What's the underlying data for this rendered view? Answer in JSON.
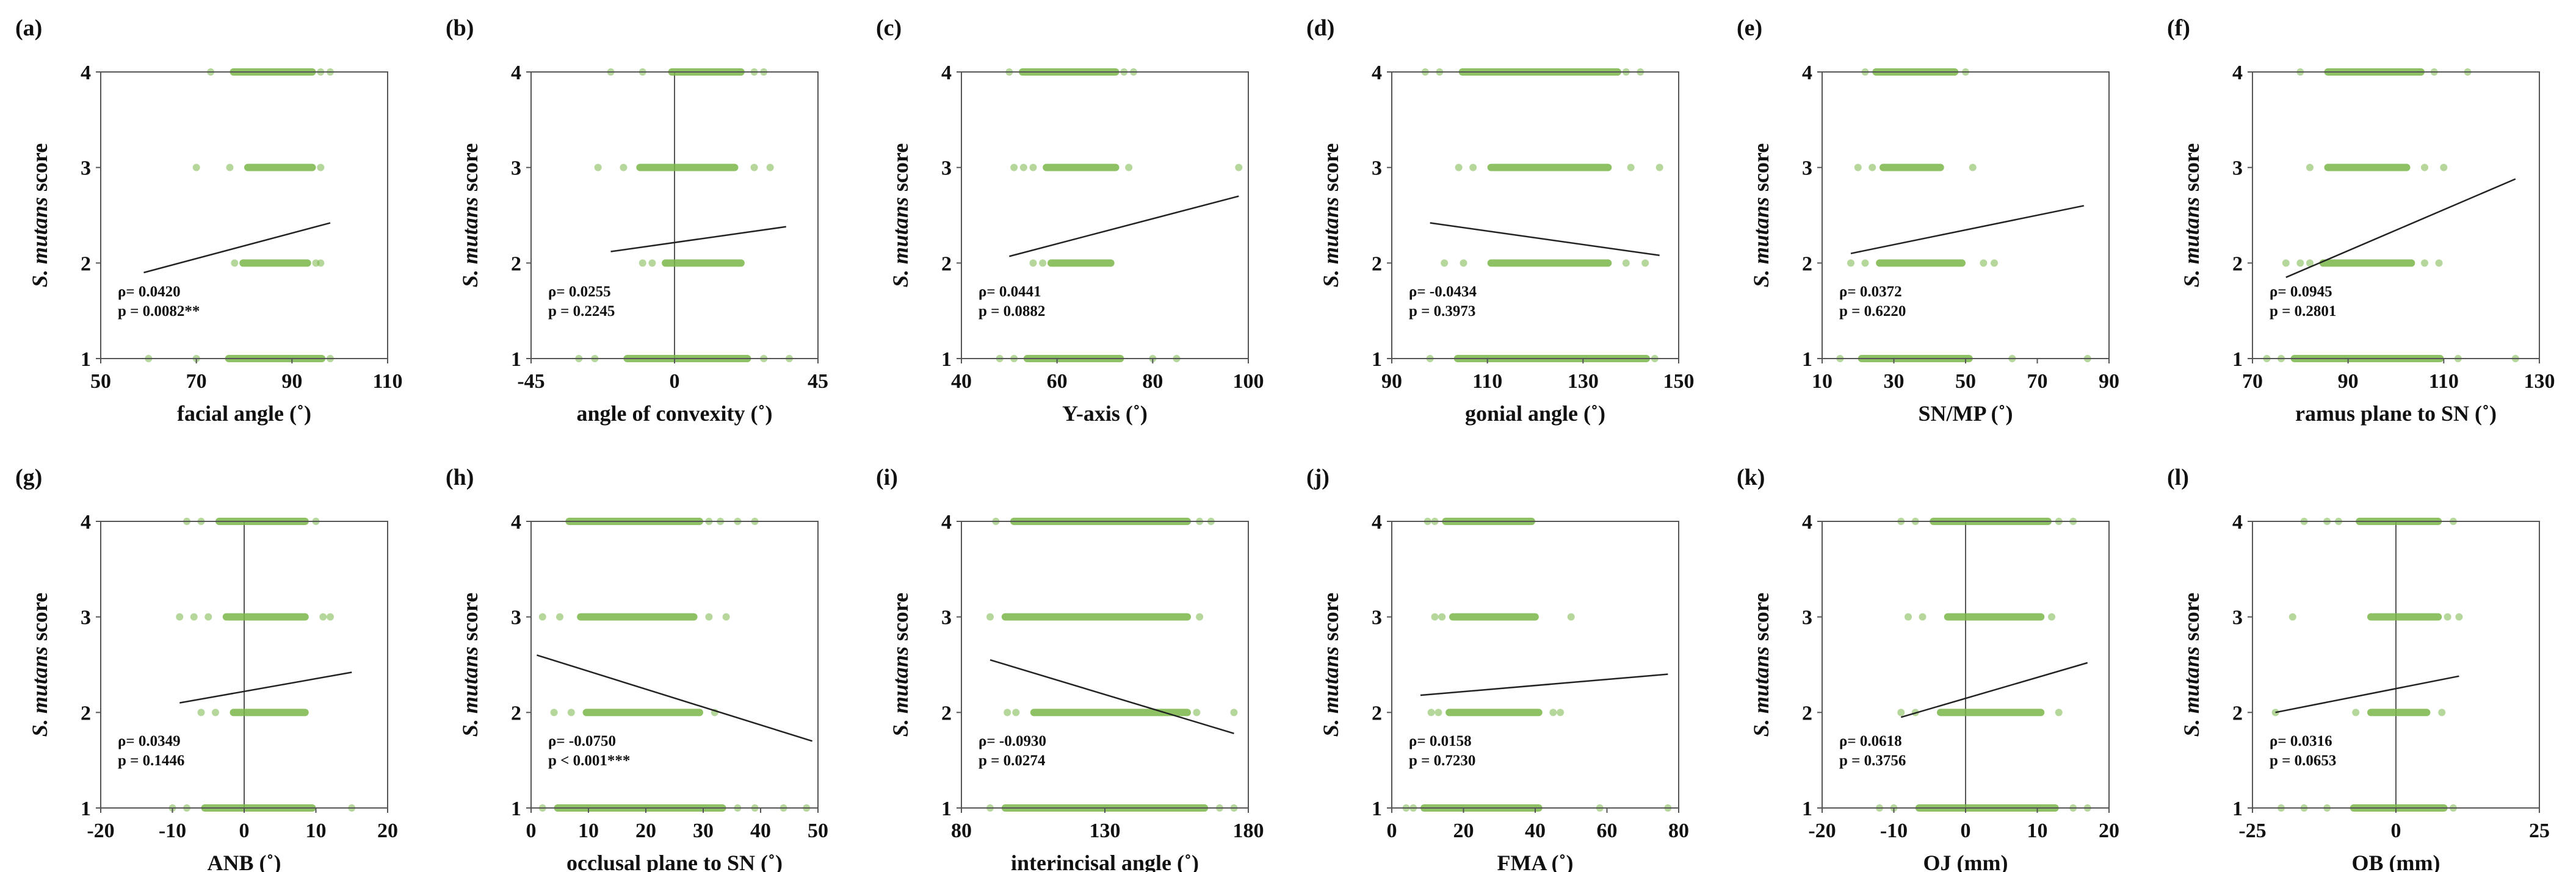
{
  "colors": {
    "points": "#7ab648",
    "trend": "#222222",
    "axis": "#555555"
  },
  "chart_data": [
    {
      "type": "scatter",
      "panel": "(a)",
      "xlabel": "facial angle (˚)",
      "ylabel_italic": "S. mutans",
      "ylabel_rest": " score",
      "xlim": [
        50,
        110
      ],
      "xticks": [
        50,
        70,
        90,
        110
      ],
      "ylim": [
        1,
        4
      ],
      "yticks": [
        1,
        2,
        3,
        4
      ],
      "zero_line": false,
      "bands": [
        {
          "y": 4,
          "x": [
            77,
            95
          ]
        },
        {
          "y": 3,
          "x": [
            80,
            95
          ]
        },
        {
          "y": 2,
          "x": [
            79,
            94
          ]
        },
        {
          "y": 1,
          "x": [
            76,
            97
          ]
        }
      ],
      "points": [
        {
          "y": 4,
          "x": [
            73,
            96,
            98
          ]
        },
        {
          "y": 3,
          "x": [
            70,
            77,
            96
          ]
        },
        {
          "y": 2,
          "x": [
            78,
            95,
            96
          ]
        },
        {
          "y": 1,
          "x": [
            60,
            70,
            98
          ]
        }
      ],
      "trend": {
        "x": [
          59,
          98
        ],
        "y": [
          1.9,
          2.42
        ]
      },
      "rho_label": "ρ= 0.0420",
      "p_label": "p = 0.0082**"
    },
    {
      "type": "scatter",
      "panel": "(b)",
      "xlabel": "angle of convexity (˚)",
      "ylabel_italic": "S. mutans",
      "ylabel_rest": " score",
      "xlim": [
        -45,
        45
      ],
      "xticks": [
        -45,
        0,
        45
      ],
      "ylim": [
        1,
        4
      ],
      "yticks": [
        1,
        2,
        3,
        4
      ],
      "zero_line": true,
      "bands": [
        {
          "y": 4,
          "x": [
            -2,
            22
          ]
        },
        {
          "y": 3,
          "x": [
            -12,
            20
          ]
        },
        {
          "y": 2,
          "x": [
            -4,
            22
          ]
        },
        {
          "y": 1,
          "x": [
            -16,
            24
          ]
        }
      ],
      "points": [
        {
          "y": 4,
          "x": [
            -20,
            -10,
            25,
            28
          ]
        },
        {
          "y": 3,
          "x": [
            -24,
            -16,
            25,
            30
          ]
        },
        {
          "y": 2,
          "x": [
            -10,
            -7
          ]
        },
        {
          "y": 1,
          "x": [
            -30,
            -25,
            28,
            36
          ]
        }
      ],
      "trend": {
        "x": [
          -20,
          35
        ],
        "y": [
          2.12,
          2.38
        ]
      },
      "rho_label": "ρ= 0.0255",
      "p_label": "p = 0.2245"
    },
    {
      "type": "scatter",
      "panel": "(c)",
      "xlabel": "Y-axis (˚)",
      "ylabel_italic": "S. mutans",
      "ylabel_rest": " score",
      "xlim": [
        40,
        100
      ],
      "xticks": [
        40,
        60,
        80,
        100
      ],
      "ylim": [
        1,
        4
      ],
      "yticks": [
        1,
        2,
        3,
        4
      ],
      "zero_line": false,
      "bands": [
        {
          "y": 4,
          "x": [
            52,
            73
          ]
        },
        {
          "y": 3,
          "x": [
            57,
            73
          ]
        },
        {
          "y": 2,
          "x": [
            58,
            72
          ]
        },
        {
          "y": 1,
          "x": [
            53,
            74
          ]
        }
      ],
      "points": [
        {
          "y": 4,
          "x": [
            50,
            74,
            76
          ]
        },
        {
          "y": 3,
          "x": [
            51,
            53,
            55,
            75,
            98
          ]
        },
        {
          "y": 2,
          "x": [
            55,
            57
          ]
        },
        {
          "y": 1,
          "x": [
            48,
            51,
            80,
            85
          ]
        }
      ],
      "trend": {
        "x": [
          50,
          98
        ],
        "y": [
          2.07,
          2.7
        ]
      },
      "rho_label": "ρ= 0.0441",
      "p_label": "p = 0.0882"
    },
    {
      "type": "scatter",
      "panel": "(d)",
      "xlabel": "gonial angle (˚)",
      "ylabel_italic": "S. mutans",
      "ylabel_rest": " score",
      "xlim": [
        90,
        150
      ],
      "xticks": [
        90,
        110,
        130,
        150
      ],
      "ylim": [
        1,
        4
      ],
      "yticks": [
        1,
        2,
        3,
        4
      ],
      "zero_line": false,
      "bands": [
        {
          "y": 4,
          "x": [
            104,
            138
          ]
        },
        {
          "y": 3,
          "x": [
            110,
            136
          ]
        },
        {
          "y": 2,
          "x": [
            110,
            136
          ]
        },
        {
          "y": 1,
          "x": [
            103,
            144
          ]
        }
      ],
      "points": [
        {
          "y": 4,
          "x": [
            97,
            100,
            139,
            142
          ]
        },
        {
          "y": 3,
          "x": [
            104,
            107,
            140,
            146
          ]
        },
        {
          "y": 2,
          "x": [
            101,
            105,
            139,
            143
          ]
        },
        {
          "y": 1,
          "x": [
            98,
            145
          ]
        }
      ],
      "trend": {
        "x": [
          98,
          146
        ],
        "y": [
          2.42,
          2.08
        ]
      },
      "rho_label": "ρ= -0.0434",
      "p_label": "p = 0.3973"
    },
    {
      "type": "scatter",
      "panel": "(e)",
      "xlabel": "SN/MP (˚)",
      "ylabel_italic": "S. mutans",
      "ylabel_rest": " score",
      "xlim": [
        10,
        90
      ],
      "xticks": [
        10,
        30,
        50,
        70,
        90
      ],
      "ylim": [
        1,
        4
      ],
      "yticks": [
        1,
        2,
        3,
        4
      ],
      "zero_line": false,
      "bands": [
        {
          "y": 4,
          "x": [
            24,
            48
          ]
        },
        {
          "y": 3,
          "x": [
            26,
            44
          ]
        },
        {
          "y": 2,
          "x": [
            25,
            50
          ]
        },
        {
          "y": 1,
          "x": [
            20,
            52
          ]
        }
      ],
      "points": [
        {
          "y": 4,
          "x": [
            22,
            50
          ]
        },
        {
          "y": 3,
          "x": [
            20,
            24,
            52
          ]
        },
        {
          "y": 2,
          "x": [
            18,
            22,
            55,
            58
          ]
        },
        {
          "y": 1,
          "x": [
            15,
            63,
            84
          ]
        }
      ],
      "trend": {
        "x": [
          18,
          83
        ],
        "y": [
          2.1,
          2.6
        ]
      },
      "rho_label": "ρ= 0.0372",
      "p_label": "p = 0.6220"
    },
    {
      "type": "scatter",
      "panel": "(f)",
      "xlabel": "ramus plane to SN (˚)",
      "ylabel_italic": "S. mutans",
      "ylabel_rest": " score",
      "xlim": [
        70,
        130
      ],
      "xticks": [
        70,
        90,
        110,
        130
      ],
      "ylim": [
        1,
        4
      ],
      "yticks": [
        1,
        2,
        3,
        4
      ],
      "zero_line": false,
      "bands": [
        {
          "y": 4,
          "x": [
            85,
            106
          ]
        },
        {
          "y": 3,
          "x": [
            85,
            103
          ]
        },
        {
          "y": 2,
          "x": [
            84,
            104
          ]
        },
        {
          "y": 1,
          "x": [
            78,
            110
          ]
        }
      ],
      "points": [
        {
          "y": 4,
          "x": [
            80,
            108,
            115
          ]
        },
        {
          "y": 3,
          "x": [
            82,
            106,
            110
          ]
        },
        {
          "y": 2,
          "x": [
            77,
            80,
            82,
            106,
            109
          ]
        },
        {
          "y": 1,
          "x": [
            73,
            76,
            113,
            125
          ]
        }
      ],
      "trend": {
        "x": [
          77,
          125
        ],
        "y": [
          1.85,
          2.88
        ]
      },
      "rho_label": "ρ= 0.0945",
      "p_label": "p = 0.2801"
    },
    {
      "type": "scatter",
      "panel": "(g)",
      "xlabel": "ANB (˚)",
      "ylabel_italic": "S. mutans",
      "ylabel_rest": " score",
      "xlim": [
        -20,
        20
      ],
      "xticks": [
        -20,
        -10,
        0,
        10,
        20
      ],
      "ylim": [
        1,
        4
      ],
      "yticks": [
        1,
        2,
        3,
        4
      ],
      "zero_line": true,
      "bands": [
        {
          "y": 4,
          "x": [
            -4,
            9
          ]
        },
        {
          "y": 3,
          "x": [
            -3,
            9
          ]
        },
        {
          "y": 2,
          "x": [
            -2,
            9
          ]
        },
        {
          "y": 1,
          "x": [
            -6,
            10
          ]
        }
      ],
      "points": [
        {
          "y": 4,
          "x": [
            -8,
            -6,
            10
          ]
        },
        {
          "y": 3,
          "x": [
            -9,
            -7,
            -5,
            11,
            12
          ]
        },
        {
          "y": 2,
          "x": [
            -6,
            -4
          ]
        },
        {
          "y": 1,
          "x": [
            -10,
            -8,
            15
          ]
        }
      ],
      "trend": {
        "x": [
          -9,
          15
        ],
        "y": [
          2.1,
          2.42
        ]
      },
      "rho_label": "ρ= 0.0349",
      "p_label": "p = 0.1446"
    },
    {
      "type": "scatter",
      "panel": "(h)",
      "xlabel": "occlusal plane to SN (˚)",
      "ylabel_italic": "S. mutans",
      "ylabel_rest": " score",
      "xlim": [
        0,
        50
      ],
      "xticks": [
        0,
        10,
        20,
        30,
        40,
        50
      ],
      "ylim": [
        1,
        4
      ],
      "yticks": [
        1,
        2,
        3,
        4
      ],
      "zero_line": false,
      "bands": [
        {
          "y": 4,
          "x": [
            6,
            30
          ]
        },
        {
          "y": 3,
          "x": [
            8,
            29
          ]
        },
        {
          "y": 2,
          "x": [
            9,
            30
          ]
        },
        {
          "y": 1,
          "x": [
            4,
            34
          ]
        }
      ],
      "points": [
        {
          "y": 4,
          "x": [
            31,
            33,
            36,
            39
          ]
        },
        {
          "y": 3,
          "x": [
            2,
            5,
            31,
            34
          ]
        },
        {
          "y": 2,
          "x": [
            4,
            7,
            32
          ]
        },
        {
          "y": 1,
          "x": [
            2,
            36,
            39,
            44,
            48
          ]
        }
      ],
      "trend": {
        "x": [
          1,
          49
        ],
        "y": [
          2.6,
          1.7
        ]
      },
      "rho_label": "ρ= -0.0750",
      "p_label": "p < 0.001***"
    },
    {
      "type": "scatter",
      "panel": "(i)",
      "xlabel": "interincisal  angle (˚)",
      "ylabel_italic": "S. mutans",
      "ylabel_rest": " score",
      "xlim": [
        80,
        180
      ],
      "xticks": [
        80,
        130,
        180
      ],
      "ylim": [
        1,
        4
      ],
      "yticks": [
        1,
        2,
        3,
        4
      ],
      "zero_line": false,
      "bands": [
        {
          "y": 4,
          "x": [
            97,
            160
          ]
        },
        {
          "y": 3,
          "x": [
            94,
            160
          ]
        },
        {
          "y": 2,
          "x": [
            104,
            160
          ]
        },
        {
          "y": 1,
          "x": [
            94,
            166
          ]
        }
      ],
      "points": [
        {
          "y": 4,
          "x": [
            92,
            163,
            167
          ]
        },
        {
          "y": 3,
          "x": [
            90,
            163
          ]
        },
        {
          "y": 2,
          "x": [
            96,
            99,
            162,
            175
          ]
        },
        {
          "y": 1,
          "x": [
            90,
            170,
            175
          ]
        }
      ],
      "trend": {
        "x": [
          90,
          175
        ],
        "y": [
          2.55,
          1.78
        ]
      },
      "rho_label": "ρ= -0.0930",
      "p_label": "p = 0.0274"
    },
    {
      "type": "scatter",
      "panel": "(j)",
      "xlabel": "FMA (˚)",
      "ylabel_italic": "S. mutans",
      "ylabel_rest": " score",
      "xlim": [
        0,
        80
      ],
      "xticks": [
        0,
        20,
        40,
        60,
        80
      ],
      "ylim": [
        1,
        4
      ],
      "yticks": [
        1,
        2,
        3,
        4
      ],
      "zero_line": false,
      "bands": [
        {
          "y": 4,
          "x": [
            14,
            40
          ]
        },
        {
          "y": 3,
          "x": [
            16,
            41
          ]
        },
        {
          "y": 2,
          "x": [
            15,
            42
          ]
        },
        {
          "y": 1,
          "x": [
            8,
            42
          ]
        }
      ],
      "points": [
        {
          "y": 4,
          "x": [
            10,
            12
          ]
        },
        {
          "y": 3,
          "x": [
            12,
            14,
            50
          ]
        },
        {
          "y": 2,
          "x": [
            11,
            13,
            45,
            47
          ]
        },
        {
          "y": 1,
          "x": [
            4,
            6,
            58,
            77
          ]
        }
      ],
      "trend": {
        "x": [
          8,
          77
        ],
        "y": [
          2.18,
          2.4
        ]
      },
      "rho_label": "ρ= 0.0158",
      "p_label": "p = 0.7230"
    },
    {
      "type": "scatter",
      "panel": "(k)",
      "xlabel": "OJ (mm)",
      "ylabel_italic": "S. mutans",
      "ylabel_rest": " score",
      "xlim": [
        -20,
        20
      ],
      "xticks": [
        -20,
        -10,
        0,
        10,
        20
      ],
      "ylim": [
        1,
        4
      ],
      "yticks": [
        1,
        2,
        3,
        4
      ],
      "zero_line": true,
      "bands": [
        {
          "y": 4,
          "x": [
            -5,
            12
          ]
        },
        {
          "y": 3,
          "x": [
            -3,
            11
          ]
        },
        {
          "y": 2,
          "x": [
            -4,
            11
          ]
        },
        {
          "y": 1,
          "x": [
            -7,
            13
          ]
        }
      ],
      "points": [
        {
          "y": 4,
          "x": [
            -9,
            -7,
            13,
            15
          ]
        },
        {
          "y": 3,
          "x": [
            -8,
            -6,
            12
          ]
        },
        {
          "y": 2,
          "x": [
            -9,
            -7,
            13
          ]
        },
        {
          "y": 1,
          "x": [
            -12,
            -10,
            15,
            17
          ]
        }
      ],
      "trend": {
        "x": [
          -9,
          17
        ],
        "y": [
          1.95,
          2.52
        ]
      },
      "rho_label": "ρ= 0.0618",
      "p_label": "p = 0.3756"
    },
    {
      "type": "scatter",
      "panel": "(l)",
      "xlabel": "OB (mm)",
      "ylabel_italic": "S. mutans",
      "ylabel_rest": " score",
      "xlim": [
        -25,
        25
      ],
      "xticks": [
        -25,
        0,
        25
      ],
      "ylim": [
        1,
        4
      ],
      "yticks": [
        1,
        2,
        3,
        4
      ],
      "zero_line": true,
      "bands": [
        {
          "y": 4,
          "x": [
            -7,
            8
          ]
        },
        {
          "y": 3,
          "x": [
            -5,
            8
          ]
        },
        {
          "y": 2,
          "x": [
            -5,
            6
          ]
        },
        {
          "y": 1,
          "x": [
            -8,
            9
          ]
        }
      ],
      "points": [
        {
          "y": 4,
          "x": [
            -16,
            -12,
            -10,
            10
          ]
        },
        {
          "y": 3,
          "x": [
            -18,
            9,
            11
          ]
        },
        {
          "y": 2,
          "x": [
            -21,
            -7,
            8
          ]
        },
        {
          "y": 1,
          "x": [
            -20,
            -16,
            -12,
            10
          ]
        }
      ],
      "trend": {
        "x": [
          -21,
          11
        ],
        "y": [
          2.0,
          2.38
        ]
      },
      "rho_label": "ρ= 0.0316",
      "p_label": "p = 0.0653"
    }
  ]
}
